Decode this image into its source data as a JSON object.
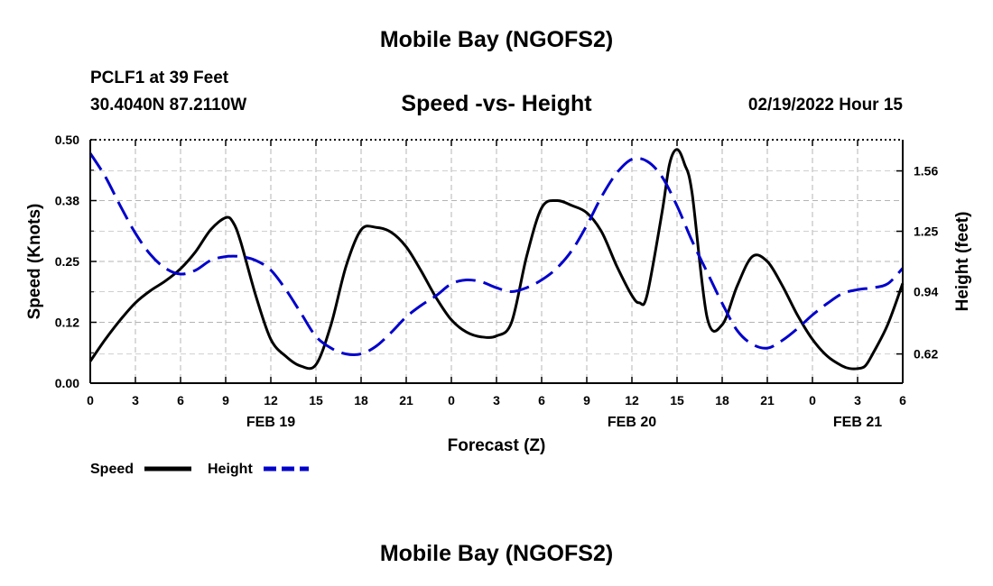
{
  "header": {
    "title": "Mobile Bay (NGOFS2)",
    "station": "PCLF1 at 39 Feet",
    "coords": "30.4040N  87.2110W",
    "datetime": "02/19/2022 Hour 15"
  },
  "footer": {
    "title": "Mobile Bay (NGOFS2)"
  },
  "chart_data": {
    "type": "line",
    "title": "Speed -vs- Height",
    "xlabel": "Forecast (Z)",
    "ylabel_left": "Speed (Knots)",
    "ylabel_right": "Height (feet)",
    "x_unit": "forecast hour",
    "xlim": [
      0,
      54
    ],
    "x_ticks": [
      0,
      3,
      6,
      9,
      12,
      15,
      18,
      21,
      24,
      27,
      30,
      33,
      36,
      39,
      42,
      45,
      48,
      51,
      54
    ],
    "x_tick_labels": [
      "0",
      "3",
      "6",
      "9",
      "12",
      "15",
      "18",
      "21",
      "0",
      "3",
      "6",
      "9",
      "12",
      "15",
      "18",
      "21",
      "0",
      "3",
      "6"
    ],
    "date_labels": [
      {
        "x": 12,
        "label": "FEB 19"
      },
      {
        "x": 36,
        "label": "FEB 20"
      },
      {
        "x": 51,
        "label": "FEB 21"
      }
    ],
    "ylim_left": [
      0,
      0.5
    ],
    "y_ticks_left": [
      0,
      0.125,
      0.25,
      0.375,
      0.5
    ],
    "y_tick_labels_left": [
      "0.00",
      "0.12",
      "0.25",
      "0.38",
      "0.50"
    ],
    "ylim_right": [
      0.47,
      1.72
    ],
    "y_ticks_right": [
      0.62,
      0.94,
      1.25,
      1.56
    ],
    "y_tick_labels_right": [
      "0.62",
      "0.94",
      "1.25",
      "1.56"
    ],
    "grid": true,
    "legend_position": "bottom-left",
    "series": [
      {
        "name": "Speed",
        "axis": "left",
        "color": "#000000",
        "style": "solid",
        "x": [
          0,
          1,
          2,
          3,
          4,
          5,
          6,
          7,
          8,
          9,
          9.5,
          10,
          11,
          12,
          13,
          14,
          15,
          16,
          17,
          18,
          19,
          20,
          21,
          22,
          23,
          24,
          25,
          26,
          27,
          28,
          29,
          30,
          31,
          32,
          33,
          34,
          35,
          36,
          36.5,
          37,
          38,
          38.5,
          39,
          39.5,
          40,
          41,
          42,
          43,
          44,
          45,
          46,
          47,
          48,
          49,
          50,
          50.5,
          51,
          51.5,
          52,
          53,
          54
        ],
        "values": [
          0.045,
          0.09,
          0.13,
          0.165,
          0.19,
          0.21,
          0.235,
          0.27,
          0.315,
          0.34,
          0.33,
          0.29,
          0.18,
          0.09,
          0.055,
          0.035,
          0.038,
          0.12,
          0.24,
          0.315,
          0.32,
          0.31,
          0.28,
          0.23,
          0.175,
          0.13,
          0.105,
          0.095,
          0.097,
          0.125,
          0.26,
          0.36,
          0.375,
          0.365,
          0.35,
          0.31,
          0.24,
          0.18,
          0.165,
          0.18,
          0.35,
          0.45,
          0.48,
          0.45,
          0.39,
          0.135,
          0.12,
          0.2,
          0.26,
          0.25,
          0.2,
          0.14,
          0.09,
          0.055,
          0.035,
          0.03,
          0.03,
          0.035,
          0.06,
          0.12,
          0.205
        ]
      },
      {
        "name": "Height",
        "axis": "right",
        "color": "#0000cc",
        "style": "dashed",
        "x": [
          0,
          1,
          2,
          3,
          4,
          5,
          6,
          7,
          8,
          9,
          10,
          11,
          12,
          13,
          14,
          15,
          16,
          17,
          18,
          19,
          20,
          21,
          22,
          23,
          24,
          25,
          26,
          27,
          28,
          29,
          30,
          31,
          32,
          33,
          34,
          35,
          36,
          37,
          38,
          39,
          40,
          41,
          42,
          43,
          44,
          45,
          46,
          47,
          48,
          49,
          50,
          51,
          52,
          53,
          54
        ],
        "values": [
          1.65,
          1.53,
          1.38,
          1.24,
          1.13,
          1.06,
          1.03,
          1.05,
          1.1,
          1.12,
          1.12,
          1.1,
          1.05,
          0.95,
          0.83,
          0.71,
          0.65,
          0.62,
          0.62,
          0.66,
          0.73,
          0.81,
          0.87,
          0.92,
          0.98,
          1.0,
          0.99,
          0.96,
          0.94,
          0.96,
          1.0,
          1.06,
          1.15,
          1.28,
          1.43,
          1.55,
          1.62,
          1.61,
          1.53,
          1.38,
          1.2,
          1.04,
          0.88,
          0.74,
          0.67,
          0.65,
          0.69,
          0.75,
          0.82,
          0.88,
          0.93,
          0.95,
          0.96,
          0.98,
          1.06
        ]
      }
    ]
  }
}
